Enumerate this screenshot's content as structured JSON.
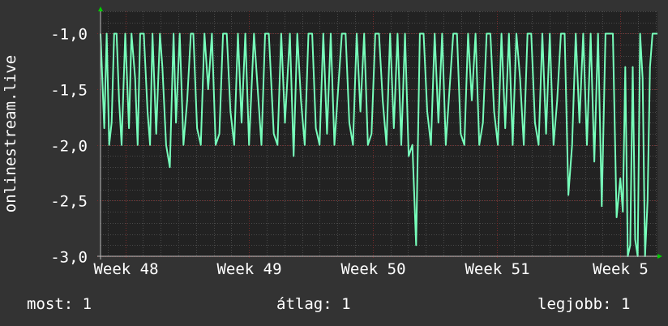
{
  "chart_data": {
    "type": "line",
    "ylabel": "onlinestream.live",
    "yticks": [
      "-1,0",
      "-1,5",
      "-2,0",
      "-2,5",
      "-3,0"
    ],
    "ytick_values": [
      -1.0,
      -1.5,
      -2.0,
      -2.5,
      -3.0
    ],
    "ylim": [
      -3.0,
      -0.8
    ],
    "xticks": [
      "Week 48",
      "Week 49",
      "Week 50",
      "Week 51",
      "Week 5"
    ],
    "xlim_weeks": [
      47.8,
      52.3
    ],
    "grid": true,
    "series": [
      {
        "color": "#77ffbb",
        "x": [
          47.8,
          47.83,
          47.85,
          47.87,
          47.89,
          47.91,
          47.93,
          47.95,
          47.97,
          48.0,
          48.03,
          48.05,
          48.08,
          48.1,
          48.12,
          48.15,
          48.18,
          48.2,
          48.22,
          48.25,
          48.28,
          48.3,
          48.33,
          48.36,
          48.39,
          48.41,
          48.44,
          48.47,
          48.5,
          48.53,
          48.55,
          48.58,
          48.61,
          48.64,
          48.67,
          48.7,
          48.73,
          48.76,
          48.79,
          48.82,
          48.85,
          48.88,
          48.91,
          48.94,
          48.97,
          49.0,
          49.04,
          49.07,
          49.1,
          49.13,
          49.16,
          49.2,
          49.23,
          49.26,
          49.29,
          49.33,
          49.36,
          49.39,
          49.42,
          49.45,
          49.48,
          49.51,
          49.54,
          49.57,
          49.6,
          49.63,
          49.66,
          49.69,
          49.72,
          49.75,
          49.78,
          49.81,
          49.84,
          49.87,
          49.9,
          49.93,
          49.96,
          49.99,
          50.02,
          50.05,
          50.08,
          50.11,
          50.14,
          50.17,
          50.2,
          50.23,
          50.26,
          50.29,
          50.32,
          50.35,
          50.38,
          50.41,
          50.44,
          50.47,
          50.5,
          50.53,
          50.56,
          50.59,
          50.62,
          50.65,
          50.68,
          50.71,
          50.74,
          50.77,
          50.8,
          50.83,
          50.86,
          50.89,
          50.92,
          50.95,
          50.98,
          51.01,
          51.04,
          51.07,
          51.1,
          51.13,
          51.16,
          51.19,
          51.22,
          51.25,
          51.28,
          51.31,
          51.34,
          51.37,
          51.4,
          51.43,
          51.46,
          51.49,
          51.52,
          51.55,
          51.58,
          51.61,
          51.64,
          51.67,
          51.7,
          51.73,
          51.76,
          51.79,
          51.82,
          51.85,
          51.88,
          51.91,
          51.94,
          51.97,
          52.0,
          52.02,
          52.04,
          52.06,
          52.08,
          52.1,
          52.12,
          52.14,
          52.16,
          52.18,
          52.2,
          52.22,
          52.24,
          52.26,
          52.28,
          52.3
        ],
        "values": [
          -1.0,
          -1.85,
          -1.0,
          -2.0,
          -1.8,
          -1.0,
          -1.0,
          -1.6,
          -2.0,
          -1.0,
          -1.85,
          -1.0,
          -1.4,
          -2.0,
          -1.0,
          -1.0,
          -1.7,
          -2.0,
          -1.0,
          -1.9,
          -1.0,
          -1.3,
          -2.0,
          -2.2,
          -1.0,
          -1.8,
          -1.0,
          -2.0,
          -1.6,
          -1.0,
          -1.0,
          -1.85,
          -2.0,
          -1.0,
          -1.5,
          -1.0,
          -2.0,
          -1.9,
          -1.0,
          -1.0,
          -1.7,
          -2.0,
          -1.0,
          -1.8,
          -1.0,
          -2.0,
          -1.0,
          -1.5,
          -2.0,
          -1.0,
          -1.0,
          -1.9,
          -2.0,
          -1.0,
          -1.8,
          -1.0,
          -2.1,
          -1.0,
          -1.6,
          -2.0,
          -1.0,
          -1.0,
          -1.85,
          -2.0,
          -1.0,
          -1.9,
          -1.0,
          -2.0,
          -1.5,
          -1.0,
          -1.0,
          -1.8,
          -2.0,
          -1.0,
          -1.7,
          -1.0,
          -2.0,
          -1.9,
          -1.0,
          -1.0,
          -1.6,
          -2.0,
          -1.0,
          -1.85,
          -1.0,
          -2.0,
          -1.0,
          -2.1,
          -2.0,
          -2.9,
          -1.0,
          -1.0,
          -1.7,
          -2.0,
          -1.0,
          -1.8,
          -1.0,
          -2.0,
          -1.5,
          -1.0,
          -1.0,
          -1.9,
          -2.0,
          -1.0,
          -1.6,
          -1.0,
          -2.0,
          -1.8,
          -1.0,
          -1.0,
          -1.7,
          -2.0,
          -1.0,
          -1.85,
          -1.0,
          -2.0,
          -1.0,
          -1.4,
          -2.0,
          -1.0,
          -1.0,
          -1.8,
          -2.0,
          -1.0,
          -1.9,
          -1.0,
          -2.0,
          -1.6,
          -1.0,
          -1.0,
          -2.45,
          -2.0,
          -1.0,
          -1.8,
          -1.0,
          -2.0,
          -1.0,
          -2.15,
          -1.0,
          -2.55,
          -1.0,
          -1.0,
          -1.0,
          -2.65,
          -2.3,
          -2.6,
          -1.3,
          -3.0,
          -2.9,
          -1.3,
          -2.85,
          -3.0,
          -1.0,
          -1.4,
          -3.0,
          -2.5,
          -1.3,
          -1.0,
          -1.0,
          -1.0
        ]
      }
    ]
  },
  "legend": {
    "now": "most: 1",
    "avg": "átlag: 1",
    "max": "legjobb: 1"
  },
  "colors": {
    "background": "#333333",
    "plot_background": "#222222",
    "grid_major": "#7a2a2a",
    "grid_minor": "#4a4a4a",
    "line": "#77ffbb",
    "text": "#ffffff"
  }
}
